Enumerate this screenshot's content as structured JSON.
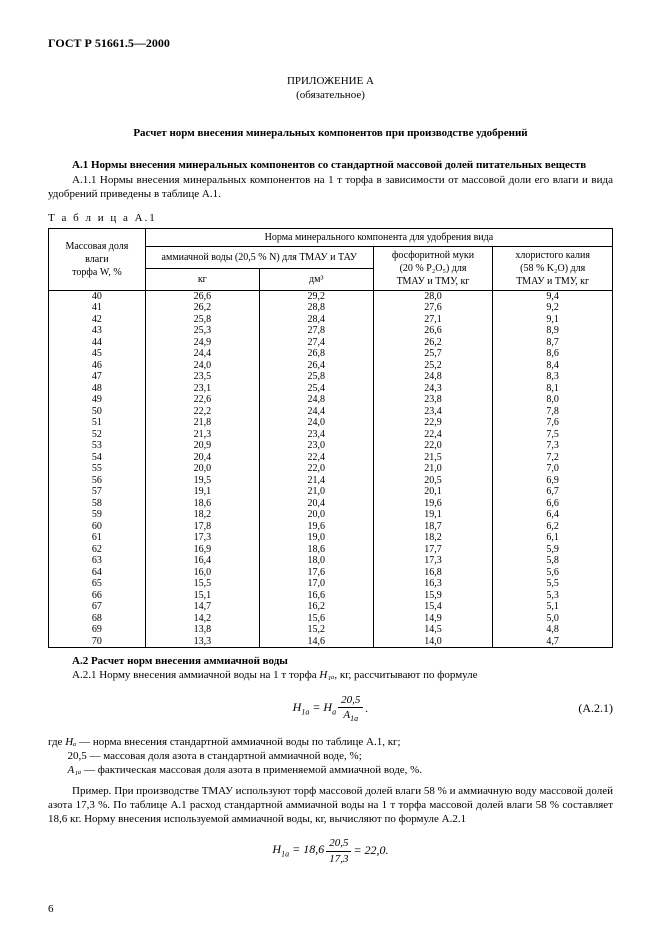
{
  "header": {
    "doc_id": "ГОСТ Р 51661.5—2000"
  },
  "appendix": {
    "title_line1": "ПРИЛОЖЕНИЕ А",
    "title_line2": "(обязательное)"
  },
  "main_heading": "Расчет норм внесения минеральных компонентов при производстве удобрений",
  "a1": {
    "heading": "А.1  Нормы внесения минеральных компонентов со стандартной массовой долей питательных веществ",
    "para": "А.1.1  Нормы внесения минеральных компонентов на 1 т торфа в зависимости от массовой доли его влаги и вида удобрений приведены в таблице А.1."
  },
  "table": {
    "caption": "Т а б л и ц а   А.1",
    "head": {
      "c1l1": "Массовая доля влаги",
      "c1l2": "торфа W, %",
      "top": "Норма минерального компонента для удобрения вида",
      "ammo": "аммиачной воды (20,5 % N) для ТМАУ и ТАУ",
      "kg": "кг",
      "dm3": "дм³",
      "phos_l1": "фосфоритной муки",
      "phos_l2": "(20 % P₂O₅) для",
      "phos_l3": "ТМАУ и ТМУ, кг",
      "kcl_l1": "хлористого калия",
      "kcl_l2": "(58 % K₂O) для",
      "kcl_l3": "ТМАУ и ТМУ, кг"
    },
    "rows": [
      {
        "w": "40",
        "kg": "26,6",
        "dm3": "29,2",
        "p": "28,0",
        "k": "9,4"
      },
      {
        "w": "41",
        "kg": "26,2",
        "dm3": "28,8",
        "p": "27,6",
        "k": "9,2"
      },
      {
        "w": "42",
        "kg": "25,8",
        "dm3": "28,4",
        "p": "27,1",
        "k": "9,1"
      },
      {
        "w": "43",
        "kg": "25,3",
        "dm3": "27,8",
        "p": "26,6",
        "k": "8,9"
      },
      {
        "w": "44",
        "kg": "24,9",
        "dm3": "27,4",
        "p": "26,2",
        "k": "8,7"
      },
      {
        "w": "45",
        "kg": "24,4",
        "dm3": "26,8",
        "p": "25,7",
        "k": "8,6"
      },
      {
        "w": "46",
        "kg": "24,0",
        "dm3": "26,4",
        "p": "25,2",
        "k": "8,4"
      },
      {
        "w": "47",
        "kg": "23,5",
        "dm3": "25,8",
        "p": "24,8",
        "k": "8,3"
      },
      {
        "w": "48",
        "kg": "23,1",
        "dm3": "25,4",
        "p": "24,3",
        "k": "8,1"
      },
      {
        "w": "49",
        "kg": "22,6",
        "dm3": "24,8",
        "p": "23,8",
        "k": "8,0"
      },
      {
        "w": "50",
        "kg": "22,2",
        "dm3": "24,4",
        "p": "23,4",
        "k": "7,8"
      },
      {
        "w": "51",
        "kg": "21,8",
        "dm3": "24,0",
        "p": "22,9",
        "k": "7,6"
      },
      {
        "w": "52",
        "kg": "21,3",
        "dm3": "23,4",
        "p": "22,4",
        "k": "7,5"
      },
      {
        "w": "53",
        "kg": "20,9",
        "dm3": "23,0",
        "p": "22,0",
        "k": "7,3"
      },
      {
        "w": "54",
        "kg": "20,4",
        "dm3": "22,4",
        "p": "21,5",
        "k": "7,2"
      },
      {
        "w": "55",
        "kg": "20,0",
        "dm3": "22,0",
        "p": "21,0",
        "k": "7,0"
      },
      {
        "w": "56",
        "kg": "19,5",
        "dm3": "21,4",
        "p": "20,5",
        "k": "6,9"
      },
      {
        "w": "57",
        "kg": "19,1",
        "dm3": "21,0",
        "p": "20,1",
        "k": "6,7"
      },
      {
        "w": "58",
        "kg": "18,6",
        "dm3": "20,4",
        "p": "19,6",
        "k": "6,6"
      },
      {
        "w": "59",
        "kg": "18,2",
        "dm3": "20,0",
        "p": "19,1",
        "k": "6,4"
      },
      {
        "w": "60",
        "kg": "17,8",
        "dm3": "19,6",
        "p": "18,7",
        "k": "6,2"
      },
      {
        "w": "61",
        "kg": "17,3",
        "dm3": "19,0",
        "p": "18,2",
        "k": "6,1"
      },
      {
        "w": "62",
        "kg": "16,9",
        "dm3": "18,6",
        "p": "17,7",
        "k": "5,9"
      },
      {
        "w": "63",
        "kg": "16,4",
        "dm3": "18,0",
        "p": "17,3",
        "k": "5,8"
      },
      {
        "w": "64",
        "kg": "16,0",
        "dm3": "17,6",
        "p": "16,8",
        "k": "5,6"
      },
      {
        "w": "65",
        "kg": "15,5",
        "dm3": "17,0",
        "p": "16,3",
        "k": "5,5"
      },
      {
        "w": "66",
        "kg": "15,1",
        "dm3": "16,6",
        "p": "15,9",
        "k": "5,3"
      },
      {
        "w": "67",
        "kg": "14,7",
        "dm3": "16,2",
        "p": "15,4",
        "k": "5,1"
      },
      {
        "w": "68",
        "kg": "14,2",
        "dm3": "15,6",
        "p": "14,9",
        "k": "5,0"
      },
      {
        "w": "69",
        "kg": "13,8",
        "dm3": "15,2",
        "p": "14,5",
        "k": "4,8"
      },
      {
        "w": "70",
        "kg": "13,3",
        "dm3": "14,6",
        "p": "14,0",
        "k": "4,7"
      }
    ]
  },
  "a2": {
    "heading": "А.2  Расчет норм внесения аммиачной воды",
    "para_prefix": "А.2.1  Норму внесения аммиачной воды на 1 т торфа ",
    "para_var": "H₁ₐ",
    "para_suffix": ", кг, рассчитывают по формуле",
    "formula": {
      "lhs": "H",
      "lhs_sub": "1a",
      "eq": " = ",
      "rhs1": "H",
      "rhs1_sub": "a",
      "frac_num": "20,5",
      "frac_den_v": "A",
      "frac_den_sub": "1a",
      "tail": " .",
      "num": "(А.2.1)"
    },
    "defs": {
      "l1_pre": "где ",
      "l1_var": "Hₐ",
      "l1_txt": " — норма внесения стандартной аммиачной воды по таблице А.1, кг;",
      "l2_var": "20,5",
      "l2_txt": " — массовая доля азота в стандартной аммиачной воде, %;",
      "l3_var": "A₁ₐ",
      "l3_txt": " — фактическая массовая доля азота в применяемой аммиачной воде, %."
    },
    "example": "Пример. При производстве ТМАУ используют торф массовой долей влаги 58 % и аммиачную воду массовой долей азота 17,3 %. По таблице А.1 расход стандартной аммиачной воды на 1 т торфа массовой долей влаги 58 % составляет 18,6 кг. Норму внесения используемой аммиачной воды, кг, вычисляют по формуле А.2.1",
    "formula2": {
      "lhs": "H",
      "lhs_sub": "1a",
      "eq": " = 18,6 ",
      "frac_num": "20,5",
      "frac_den": "17,3",
      "tail": " = 22,0."
    }
  },
  "page_number": "6"
}
